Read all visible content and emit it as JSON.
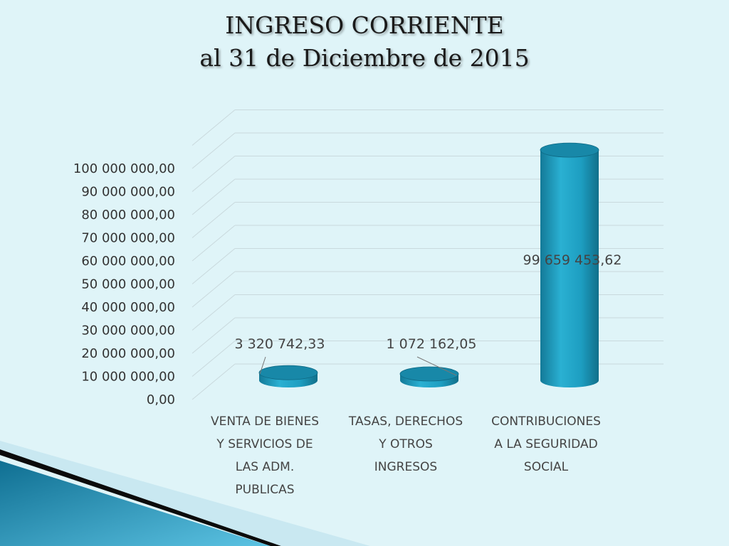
{
  "slide": {
    "title_line1": "INGRESO CORRIENTE",
    "title_line2": "al 31 de Diciembre de 2015"
  },
  "colors": {
    "background": "#dff4f8",
    "bar_main": "#1fa0c4",
    "bar_dark": "#137a98",
    "bar_top": "#1888a8",
    "text": "#444444",
    "axis_text": "#333333"
  },
  "chart_data": {
    "type": "bar",
    "style": "3d-cylinder",
    "title": "",
    "xlabel": "",
    "ylabel": "",
    "ylim": [
      0,
      100000000
    ],
    "grid": true,
    "legend": "none",
    "y_tick_labels": [
      "0,00",
      "10 000 000,00",
      "20 000 000,00",
      "30 000 000,00",
      "40 000 000,00",
      "50 000 000,00",
      "60 000 000,00",
      "70 000 000,00",
      "80 000 000,00",
      "90 000 000,00",
      "100 000 000,00"
    ],
    "categories": [
      [
        "VENTA DE BIENES",
        "Y SERVICIOS DE",
        "LAS ADM.",
        "PUBLICAS"
      ],
      [
        "TASAS, DERECHOS",
        "Y OTROS",
        "INGRESOS"
      ],
      [
        "CONTRIBUCIONES",
        "A LA SEGURIDAD",
        "SOCIAL"
      ]
    ],
    "values": [
      3320742.33,
      1072162.05,
      99659453.62
    ],
    "data_labels": [
      "3 320 742,33",
      "1 072 162,05",
      "99 659 453,62"
    ]
  }
}
